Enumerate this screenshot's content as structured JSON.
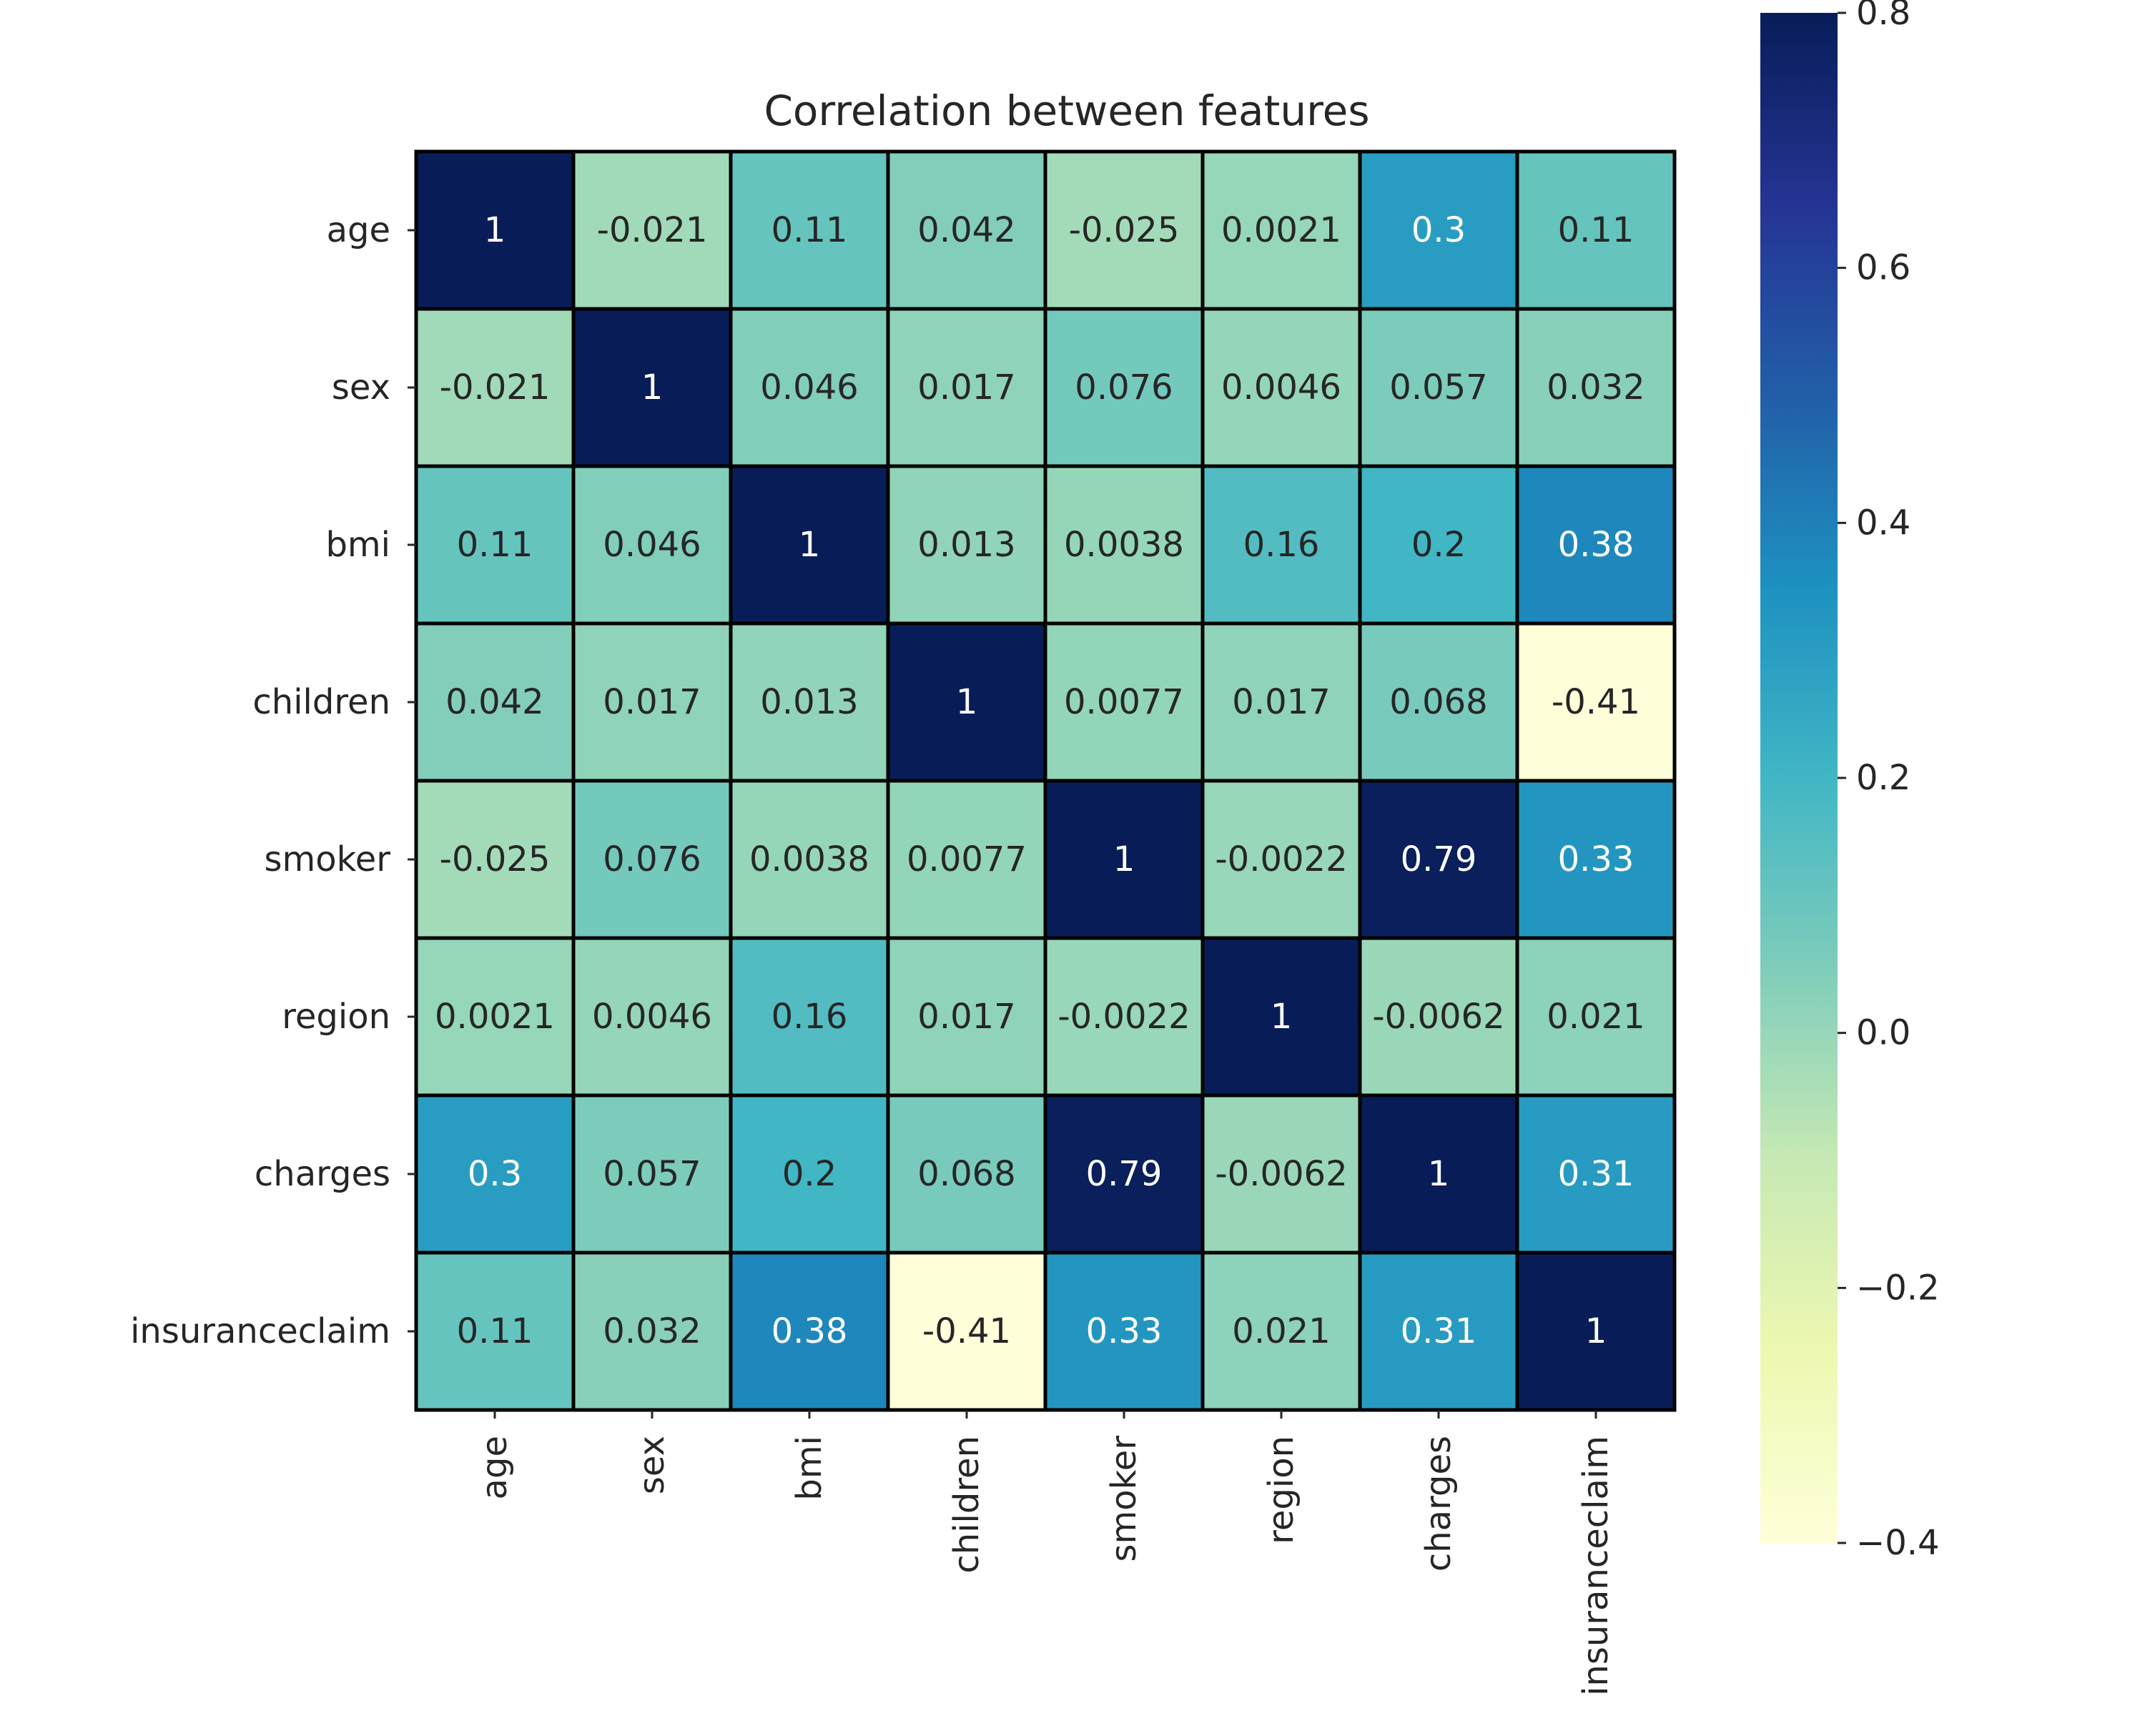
{
  "chart_data": {
    "type": "heatmap",
    "title": "Correlation between features",
    "xlabel": "",
    "ylabel": "",
    "rows": [
      "age",
      "sex",
      "bmi",
      "children",
      "smoker",
      "region",
      "charges",
      "insuranceclaim"
    ],
    "columns": [
      "age",
      "sex",
      "bmi",
      "children",
      "smoker",
      "region",
      "charges",
      "insuranceclaim"
    ],
    "values": [
      [
        1,
        -0.021,
        0.11,
        0.042,
        -0.025,
        0.0021,
        0.3,
        0.11
      ],
      [
        -0.021,
        1,
        0.046,
        0.017,
        0.076,
        0.0046,
        0.057,
        0.032
      ],
      [
        0.11,
        0.046,
        1,
        0.013,
        0.0038,
        0.16,
        0.2,
        0.38
      ],
      [
        0.042,
        0.017,
        0.013,
        1,
        0.0077,
        0.017,
        0.068,
        -0.41
      ],
      [
        -0.025,
        0.076,
        0.0038,
        0.0077,
        1,
        -0.0022,
        0.79,
        0.33
      ],
      [
        0.0021,
        0.0046,
        0.16,
        0.017,
        -0.0022,
        1,
        -0.0062,
        0.021
      ],
      [
        0.3,
        0.057,
        0.2,
        0.068,
        0.79,
        -0.0062,
        1,
        0.31
      ],
      [
        0.11,
        0.032,
        0.38,
        -0.41,
        0.33,
        0.021,
        0.31,
        1
      ]
    ],
    "labels": [
      [
        "1",
        "-0.021",
        "0.11",
        "0.042",
        "-0.025",
        "0.0021",
        "0.3",
        "0.11"
      ],
      [
        "-0.021",
        "1",
        "0.046",
        "0.017",
        "0.076",
        "0.0046",
        "0.057",
        "0.032"
      ],
      [
        "0.11",
        "0.046",
        "1",
        "0.013",
        "0.0038",
        "0.16",
        "0.2",
        "0.38"
      ],
      [
        "0.042",
        "0.017",
        "0.013",
        "1",
        "0.0077",
        "0.017",
        "0.068",
        "-0.41"
      ],
      [
        "-0.025",
        "0.076",
        "0.0038",
        "0.0077",
        "1",
        "-0.0022",
        "0.79",
        "0.33"
      ],
      [
        "0.0021",
        "0.0046",
        "0.16",
        "0.017",
        "-0.0022",
        "1",
        "-0.0062",
        "0.021"
      ],
      [
        "0.3",
        "0.057",
        "0.2",
        "0.068",
        "0.79",
        "-0.0062",
        "1",
        "0.31"
      ],
      [
        "0.11",
        "0.032",
        "0.38",
        "-0.41",
        "0.33",
        "0.021",
        "0.31",
        "1"
      ]
    ],
    "colorbar": {
      "vmin": -0.4,
      "vmax": 0.8,
      "ticks": [
        0.8,
        0.6,
        0.4,
        0.2,
        0.0,
        -0.2,
        -0.4
      ],
      "tick_labels": [
        "0.8",
        "0.6",
        "0.4",
        "0.2",
        "0.0",
        "−0.2",
        "−0.4"
      ]
    },
    "colormap": {
      "name": "YlGnBu",
      "stops": [
        "#ffffd9",
        "#edf8b1",
        "#c7e9b4",
        "#7fcdbb",
        "#41b6c4",
        "#1d91c0",
        "#225ea8",
        "#253494",
        "#081d58"
      ]
    },
    "linecolor": "#000000"
  }
}
